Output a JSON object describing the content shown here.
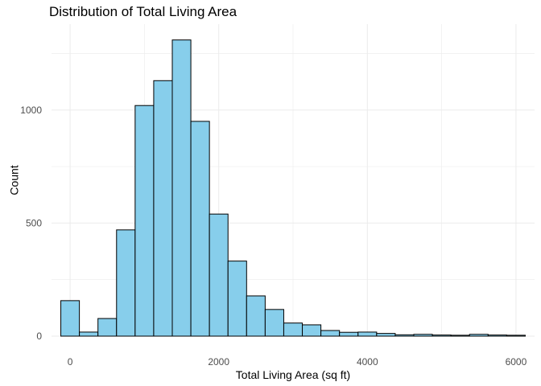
{
  "chart_data": {
    "type": "bar",
    "title": "Distribution of Total Living Area",
    "xlabel": "Total Living Area (sq ft)",
    "ylabel": "Count",
    "bin_width": 250,
    "bins": [
      {
        "center": 0,
        "count": 157
      },
      {
        "center": 250,
        "count": 18
      },
      {
        "center": 500,
        "count": 78
      },
      {
        "center": 750,
        "count": 470
      },
      {
        "center": 1000,
        "count": 1020
      },
      {
        "center": 1250,
        "count": 1130
      },
      {
        "center": 1500,
        "count": 1310
      },
      {
        "center": 1750,
        "count": 950
      },
      {
        "center": 2000,
        "count": 540
      },
      {
        "center": 2250,
        "count": 332
      },
      {
        "center": 2500,
        "count": 178
      },
      {
        "center": 2750,
        "count": 118
      },
      {
        "center": 3000,
        "count": 58
      },
      {
        "center": 3250,
        "count": 50
      },
      {
        "center": 3500,
        "count": 25
      },
      {
        "center": 3750,
        "count": 17
      },
      {
        "center": 4000,
        "count": 18
      },
      {
        "center": 4250,
        "count": 12
      },
      {
        "center": 4500,
        "count": 6
      },
      {
        "center": 4750,
        "count": 8
      },
      {
        "center": 5000,
        "count": 5
      },
      {
        "center": 5250,
        "count": 4
      },
      {
        "center": 5500,
        "count": 8
      },
      {
        "center": 5750,
        "count": 5
      },
      {
        "center": 6000,
        "count": 4
      }
    ],
    "x_ticks": [
      0,
      2000,
      4000,
      6000
    ],
    "y_ticks": [
      0,
      500,
      1000
    ],
    "xlim": [
      -250,
      6250
    ],
    "ylim": [
      0,
      1380
    ],
    "grid": true,
    "legend": "none",
    "colors": {
      "bar_fill": "#87CEEB",
      "bar_stroke": "#000000",
      "grid": "#ebebeb",
      "tick_text": "#4d4d4d"
    }
  }
}
